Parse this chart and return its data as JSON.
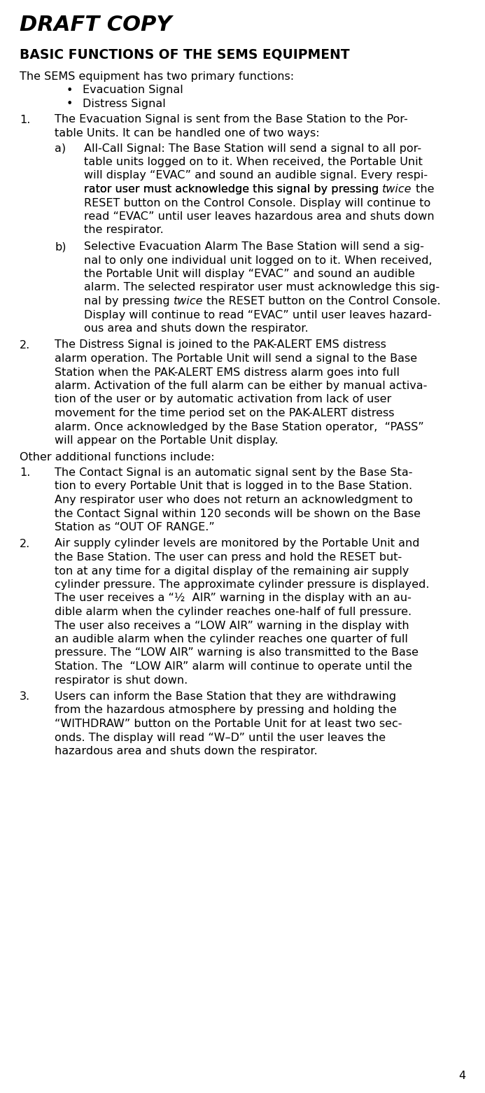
{
  "bg_color": "#ffffff",
  "text_color": "#000000",
  "page_number": "4",
  "draft_copy": "DRAFT COPY",
  "title": "BASIC FUNCTIONS OF THE SEMS EQUIPMENT",
  "content_lines": [
    {
      "text": "The SEMS equipment has two primary functions:",
      "style": "normal",
      "indent": 0,
      "type": "body"
    },
    {
      "text": "Evacuation Signal",
      "style": "normal",
      "indent": 1,
      "type": "bullet"
    },
    {
      "text": "Distress Signal",
      "style": "normal",
      "indent": 1,
      "type": "bullet"
    },
    {
      "text": "The Evacuation Signal is sent from the Base Station to the Por-",
      "style": "normal",
      "indent": 0,
      "type": "num_start",
      "num": "1."
    },
    {
      "text": "table Units. It can be handled one of two ways:",
      "style": "normal",
      "indent": 0,
      "type": "num_cont"
    },
    {
      "text": "All-Call Signal: The Base Station will send a signal to all por-",
      "style": "normal",
      "indent": 2,
      "type": "alpha_start",
      "alpha": "a)"
    },
    {
      "text": "table units logged on to it. When received, the Portable Unit",
      "style": "normal",
      "indent": 2,
      "type": "alpha_cont"
    },
    {
      "text": "will display “EVAC” and sound an audible signal. Every respi-",
      "style": "normal",
      "indent": 2,
      "type": "alpha_cont"
    },
    {
      "text": [
        "rator user must acknowledge this signal by pressing ",
        "twice",
        " the"
      ],
      "style": "mixed",
      "indent": 2,
      "type": "alpha_cont"
    },
    {
      "text": "RESET button on the Control Console. Display will continue to",
      "style": "normal",
      "indent": 2,
      "type": "alpha_cont"
    },
    {
      "text": "read “EVAC” until user leaves hazardous area and shuts down",
      "style": "normal",
      "indent": 2,
      "type": "alpha_cont"
    },
    {
      "text": "the respirator.",
      "style": "normal",
      "indent": 2,
      "type": "alpha_cont"
    },
    {
      "text": "Selective Evacuation Alarm The Base Station will send a sig-",
      "style": "normal",
      "indent": 2,
      "type": "alpha_start",
      "alpha": "b)"
    },
    {
      "text": "nal to only one individual unit logged on to it. When received,",
      "style": "normal",
      "indent": 2,
      "type": "alpha_cont"
    },
    {
      "text": "the Portable Unit will display “EVAC” and sound an audible",
      "style": "normal",
      "indent": 2,
      "type": "alpha_cont"
    },
    {
      "text": "alarm. The selected respirator user must acknowledge this sig-",
      "style": "normal",
      "indent": 2,
      "type": "alpha_cont"
    },
    {
      "text": [
        "nal by pressing ",
        "twice",
        " the RESET button on the Control Console."
      ],
      "style": "mixed",
      "indent": 2,
      "type": "alpha_cont"
    },
    {
      "text": "Display will continue to read “EVAC” until user leaves hazard-",
      "style": "normal",
      "indent": 2,
      "type": "alpha_cont"
    },
    {
      "text": "ous area and shuts down the respirator.",
      "style": "normal",
      "indent": 2,
      "type": "alpha_cont"
    },
    {
      "text": "The Distress Signal is joined to the PAK-ALERT EMS distress",
      "style": "normal",
      "indent": 0,
      "type": "num_start",
      "num": "2."
    },
    {
      "text": "alarm operation. The Portable Unit will send a signal to the Base",
      "style": "normal",
      "indent": 0,
      "type": "num_cont"
    },
    {
      "text": "Station when the PAK-ALERT EMS distress alarm goes into full",
      "style": "normal",
      "indent": 0,
      "type": "num_cont"
    },
    {
      "text": "alarm. Activation of the full alarm can be either by manual activa-",
      "style": "normal",
      "indent": 0,
      "type": "num_cont"
    },
    {
      "text": "tion of the user or by automatic activation from lack of user",
      "style": "normal",
      "indent": 0,
      "type": "num_cont"
    },
    {
      "text": "movement for the time period set on the PAK-ALERT distress",
      "style": "normal",
      "indent": 0,
      "type": "num_cont"
    },
    {
      "text": "alarm. Once acknowledged by the Base Station operator,  “PASS”",
      "style": "normal",
      "indent": 0,
      "type": "num_cont"
    },
    {
      "text": "will appear on the Portable Unit display.",
      "style": "normal",
      "indent": 0,
      "type": "num_cont"
    },
    {
      "text": "Other additional functions include:",
      "style": "normal",
      "indent": 0,
      "type": "body"
    },
    {
      "text": "The Contact Signal is an automatic signal sent by the Base Sta-",
      "style": "normal",
      "indent": 0,
      "type": "num_start",
      "num": "1."
    },
    {
      "text": "tion to every Portable Unit that is logged in to the Base Station.",
      "style": "normal",
      "indent": 0,
      "type": "num_cont"
    },
    {
      "text": "Any respirator user who does not return an acknowledgment to",
      "style": "normal",
      "indent": 0,
      "type": "num_cont"
    },
    {
      "text": "the Contact Signal within 120 seconds will be shown on the Base",
      "style": "normal",
      "indent": 0,
      "type": "num_cont"
    },
    {
      "text": "Station as “OUT OF RANGE.”",
      "style": "normal",
      "indent": 0,
      "type": "num_cont"
    },
    {
      "text": "Air supply cylinder levels are monitored by the Portable Unit and",
      "style": "normal",
      "indent": 0,
      "type": "num_start",
      "num": "2."
    },
    {
      "text": "the Base Station. The user can press and hold the RESET but-",
      "style": "normal",
      "indent": 0,
      "type": "num_cont"
    },
    {
      "text": "ton at any time for a digital display of the remaining air supply",
      "style": "normal",
      "indent": 0,
      "type": "num_cont"
    },
    {
      "text": "cylinder pressure. The approximate cylinder pressure is displayed.",
      "style": "normal",
      "indent": 0,
      "type": "num_cont"
    },
    {
      "text": "The user receives a “½  AIR” warning in the display with an au-",
      "style": "normal",
      "indent": 0,
      "type": "num_cont"
    },
    {
      "text": "dible alarm when the cylinder reaches one-half of full pressure.",
      "style": "normal",
      "indent": 0,
      "type": "num_cont"
    },
    {
      "text": "The user also receives a “LOW AIR” warning in the display with",
      "style": "normal",
      "indent": 0,
      "type": "num_cont"
    },
    {
      "text": "an audible alarm when the cylinder reaches one quarter of full",
      "style": "normal",
      "indent": 0,
      "type": "num_cont"
    },
    {
      "text": "pressure. The “LOW AIR” warning is also transmitted to the Base",
      "style": "normal",
      "indent": 0,
      "type": "num_cont"
    },
    {
      "text": "Station. The  “LOW AIR” alarm will continue to operate until the",
      "style": "normal",
      "indent": 0,
      "type": "num_cont"
    },
    {
      "text": "respirator is shut down.",
      "style": "normal",
      "indent": 0,
      "type": "num_cont"
    },
    {
      "text": "Users can inform the Base Station that they are withdrawing",
      "style": "normal",
      "indent": 0,
      "type": "num_start",
      "num": "3."
    },
    {
      "text": "from the hazardous atmosphere by pressing and holding the",
      "style": "normal",
      "indent": 0,
      "type": "num_cont"
    },
    {
      "text": "“WITHDRAW” button on the Portable Unit for at least two sec-",
      "style": "normal",
      "indent": 0,
      "type": "num_cont"
    },
    {
      "text": "onds. The display will read “W–D” until the user leaves the",
      "style": "normal",
      "indent": 0,
      "type": "num_cont"
    },
    {
      "text": "hazardous area and shuts down the respirator.",
      "style": "normal",
      "indent": 0,
      "type": "num_cont"
    }
  ]
}
